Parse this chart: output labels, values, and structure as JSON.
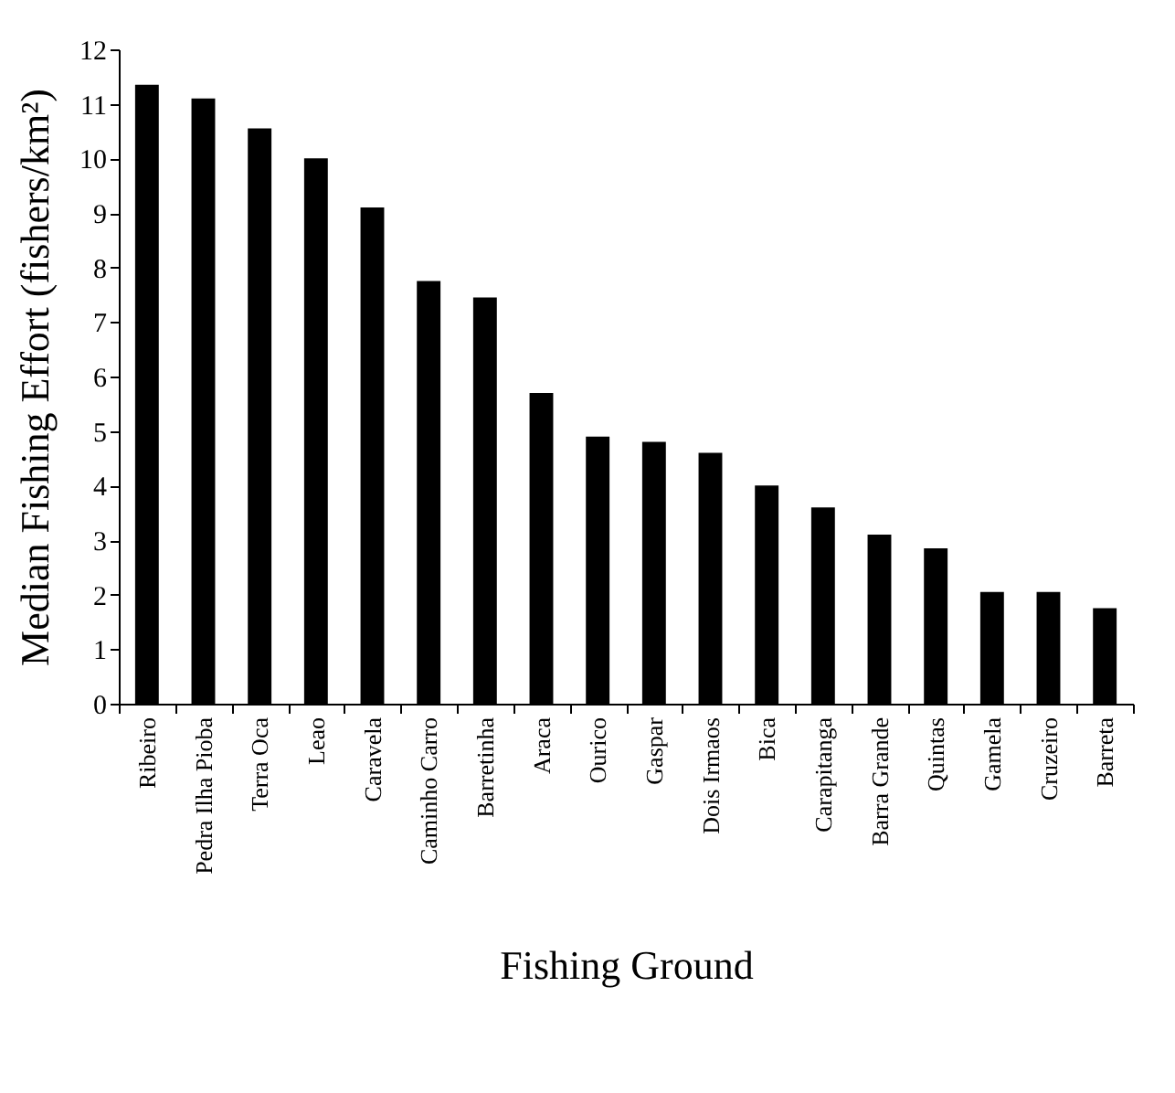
{
  "chart_data": {
    "type": "bar",
    "xlabel": "Fishing Ground",
    "ylabel": "Median Fishing Effort (fishers/km²)",
    "categories": [
      "Ribeiro",
      "Pedra Ilha Pioba",
      "Terra Oca",
      "Leao",
      "Caravela",
      "Caminho Carro",
      "Barretinha",
      "Araca",
      "Ourico",
      "Gaspar",
      "Dois Irmaos",
      "Bica",
      "Carapitanga",
      "Barra Grande",
      "Quintas",
      "Gamela",
      "Cruzeiro",
      "Barreta"
    ],
    "values": [
      11.35,
      11.1,
      10.55,
      10.0,
      9.1,
      7.75,
      7.45,
      5.7,
      4.9,
      4.8,
      4.6,
      4.0,
      3.6,
      3.1,
      2.85,
      2.05,
      2.05,
      1.75
    ],
    "color": "#000000",
    "ylim": [
      0,
      12
    ],
    "yticks": [
      0,
      1,
      2,
      3,
      4,
      5,
      6,
      7,
      8,
      9,
      10,
      11,
      12
    ],
    "grid": false
  }
}
